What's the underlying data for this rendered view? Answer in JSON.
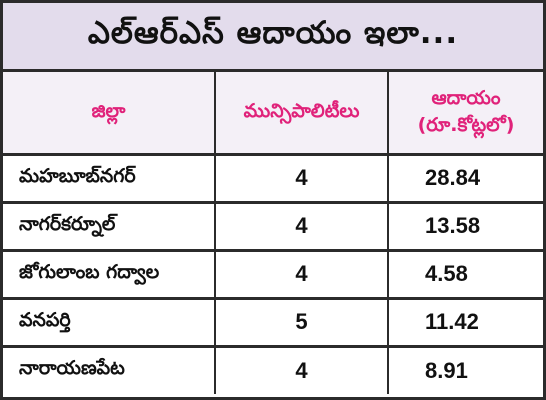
{
  "title": "ఎల్ఆర్ఎస్ ఆదాయం ఇలా...",
  "table": {
    "headers": {
      "district": "జిల్లా",
      "municipalities": "మున్సిపాలిటీలు",
      "income_line1": "ఆదాయం",
      "income_line2": "(రూ.కోట్లలో)"
    },
    "rows": [
      {
        "district": "మహబూబ్‌నగర్",
        "municipalities": "4",
        "income": "28.84"
      },
      {
        "district": "నాగర్‌కర్నూల్",
        "municipalities": "4",
        "income": "13.58"
      },
      {
        "district": "జోగులాంబ గద్వాల",
        "municipalities": "4",
        "income": "4.58"
      },
      {
        "district": "వనపర్తి",
        "municipalities": "5",
        "income": "11.42"
      },
      {
        "district": "నారాయణపేట",
        "municipalities": "4",
        "income": "8.91"
      }
    ]
  },
  "colors": {
    "title_background": "#e3dcec",
    "header_background": "#f4f0f7",
    "header_text": "#e0227a",
    "border": "#2b2b2b"
  }
}
